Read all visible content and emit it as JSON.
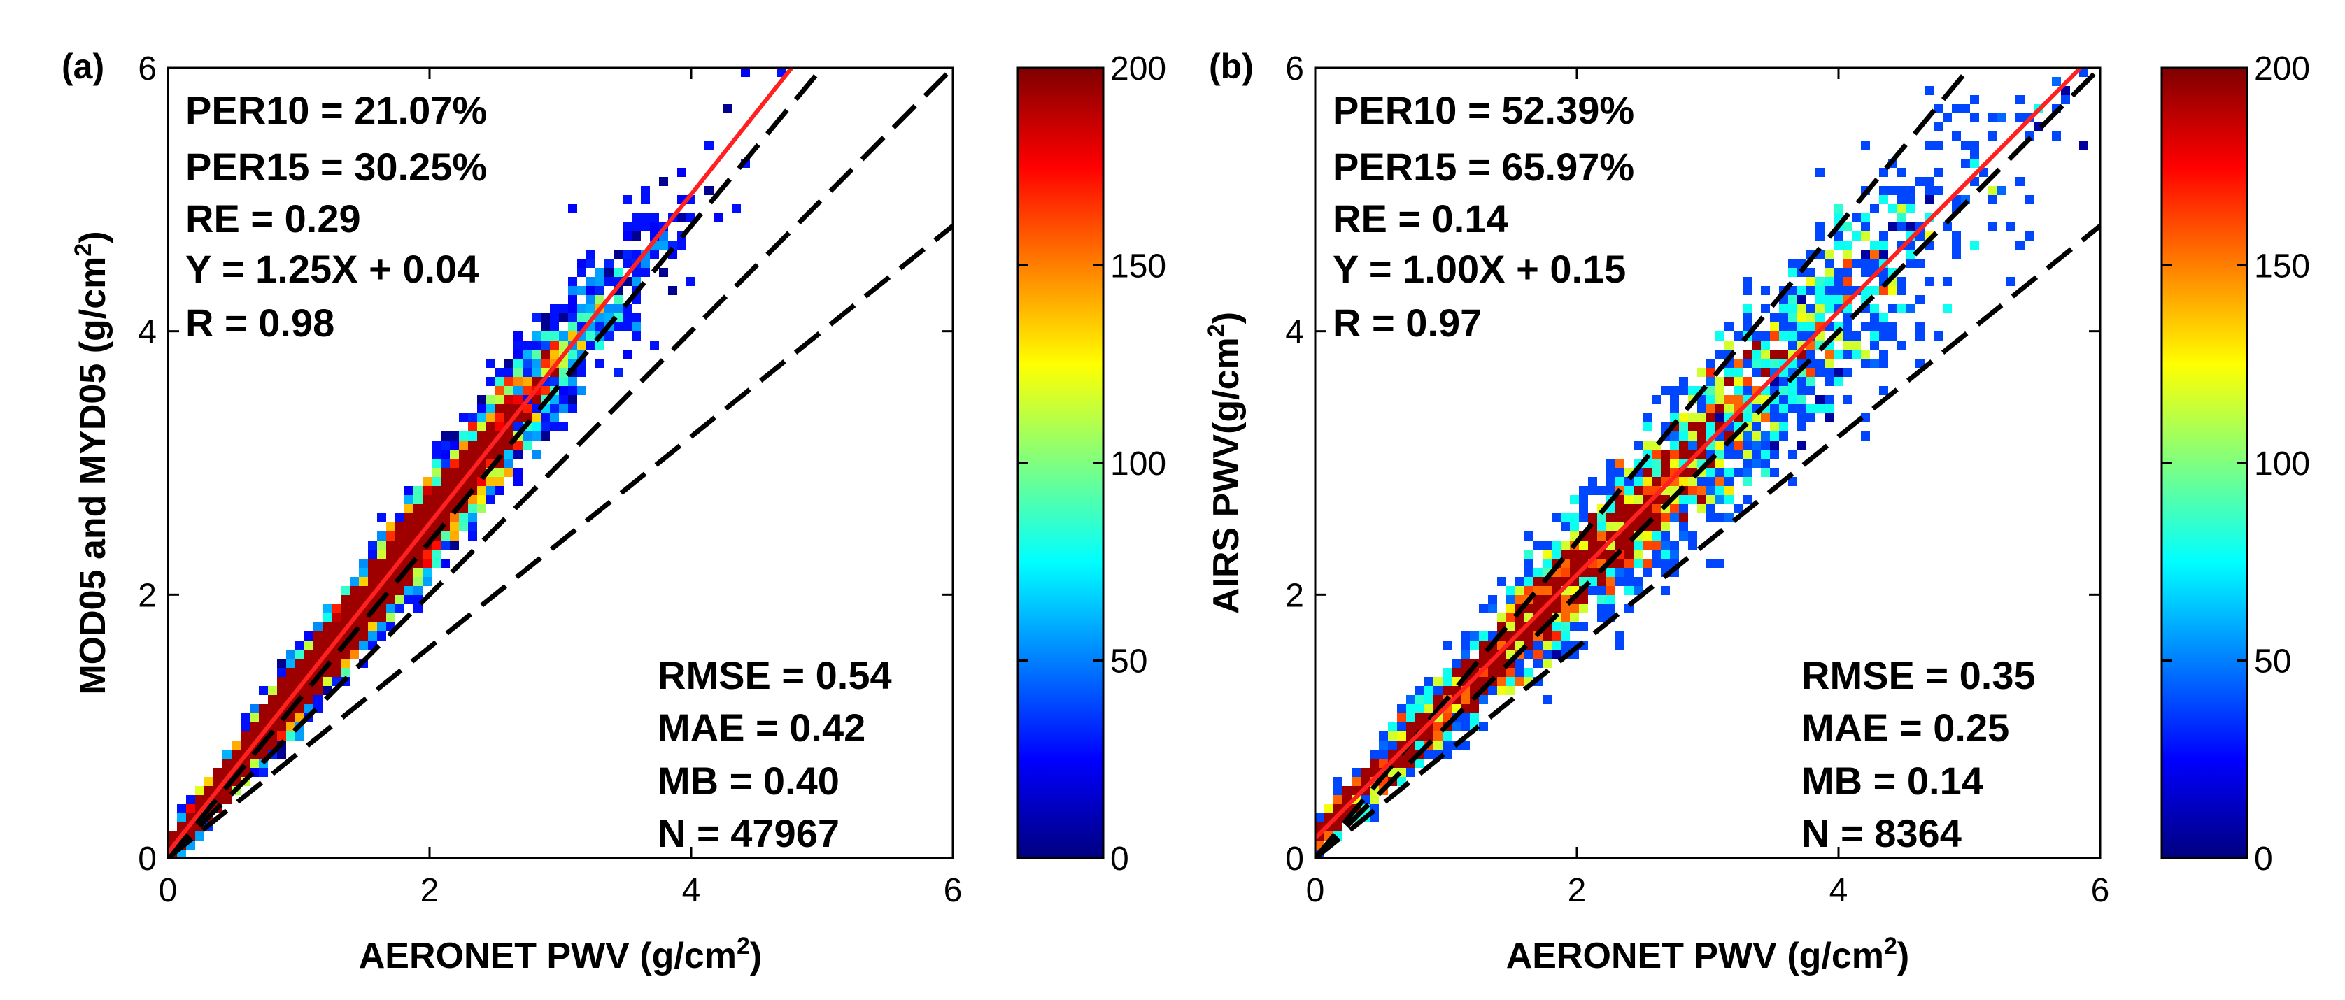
{
  "chart_data": [
    {
      "type": "scatter",
      "panel_label": "(a)",
      "xlabel": "AERONET PWV (g/cm",
      "xlabel_sup": "2",
      "xlabel_end": ")",
      "ylabel": "MOD05 and MYD05 (g/cm",
      "ylabel_sup": "2",
      "ylabel_end": ")",
      "xlim": [
        0,
        6
      ],
      "ylim": [
        0,
        6
      ],
      "xticks": [
        "0",
        "2",
        "4",
        "6"
      ],
      "yticks": [
        "0",
        "2",
        "4",
        "6"
      ],
      "fit": {
        "slope": 1.25,
        "intercept": 0.04
      },
      "reference_lines": [
        {
          "name": "1:1",
          "slope": 1.0
        },
        {
          "name": "+20%",
          "slope": 1.2
        },
        {
          "name": "-20%",
          "slope": 0.8
        }
      ],
      "density_spread": 0.11,
      "stats_top": [
        "PER10 = 21.07%",
        "PER15 = 30.25%",
        "RE = 0.29",
        "Y = 1.25X + 0.04",
        "R = 0.98"
      ],
      "stats_bottom": [
        "RMSE = 0.54",
        "MAE = 0.42",
        "MB = 0.40",
        "N = 47967"
      ],
      "colorbar": {
        "min": 0,
        "max": 200,
        "ticks": [
          "0",
          "50",
          "100",
          "150",
          "200"
        ]
      }
    },
    {
      "type": "scatter",
      "panel_label": "(b)",
      "xlabel": "AERONET PWV (g/cm",
      "xlabel_sup": "2",
      "xlabel_end": ")",
      "ylabel": "AIRS PWV(g/cm",
      "ylabel_sup": "2",
      "ylabel_end": ")",
      "xlim": [
        0,
        6
      ],
      "ylim": [
        0,
        6
      ],
      "xticks": [
        "0",
        "2",
        "4",
        "6"
      ],
      "yticks": [
        "0",
        "2",
        "4",
        "6"
      ],
      "fit": {
        "slope": 1.0,
        "intercept": 0.15
      },
      "reference_lines": [
        {
          "name": "1:1",
          "slope": 1.0
        },
        {
          "name": "+20%",
          "slope": 1.2
        },
        {
          "name": "-20%",
          "slope": 0.8
        }
      ],
      "density_spread": 0.15,
      "stats_top": [
        "PER10 = 52.39%",
        "PER15 = 65.97%",
        "RE = 0.14",
        "Y = 1.00X + 0.15",
        "R = 0.97"
      ],
      "stats_bottom": [
        "RMSE = 0.35",
        "MAE = 0.25",
        "MB = 0.14",
        "N = 8364"
      ],
      "colorbar": {
        "min": 0,
        "max": 200,
        "ticks": [
          "0",
          "50",
          "100",
          "150",
          "200"
        ]
      }
    }
  ],
  "colors": {
    "fit_line": "#ff2020",
    "reference_line": "#000000",
    "jet": [
      "#00007f",
      "#0000ff",
      "#007fff",
      "#00ffff",
      "#7fff7f",
      "#ffff00",
      "#ff7f00",
      "#ff0000",
      "#7f0000"
    ]
  }
}
